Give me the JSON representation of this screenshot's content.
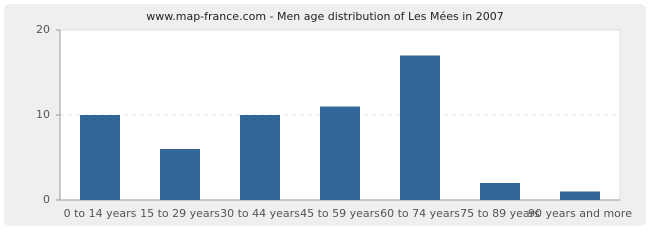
{
  "chart_data": {
    "type": "bar",
    "title": "www.map-france.com - Men age distribution of Les Mées in 2007",
    "categories": [
      "0 to 14 years",
      "15 to 29 years",
      "30 to 44 years",
      "45 to 59 years",
      "60 to 74 years",
      "75 to 89 years",
      "90 years and more"
    ],
    "values": [
      10,
      6,
      10,
      11,
      17,
      2,
      1
    ],
    "color": "#336699",
    "ylim": [
      0,
      20
    ],
    "yticks": [
      0,
      10,
      20
    ],
    "grid": true
  }
}
